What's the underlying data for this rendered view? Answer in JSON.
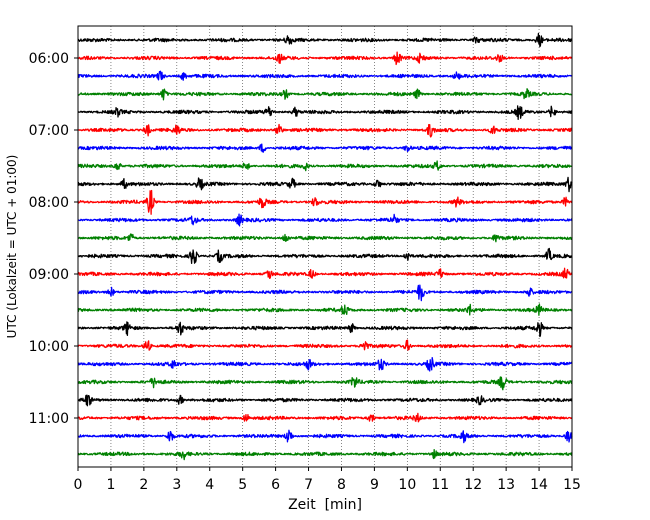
{
  "chart_data": {
    "type": "line",
    "title": "",
    "xlabel": "Zeit  [min]",
    "ylabel": "UTC (Lokalzeit = UTC + 01:00)",
    "xlim": [
      0,
      15
    ],
    "x_ticks": [
      "0",
      "1",
      "2",
      "3",
      "4",
      "5",
      "6",
      "7",
      "8",
      "9",
      "10",
      "11",
      "12",
      "13",
      "14",
      "15"
    ],
    "y_tick_labels": [
      "06:00",
      "07:00",
      "08:00",
      "09:00",
      "10:00",
      "11:00"
    ],
    "grid": "vertical dotted",
    "trace_colors": [
      "#000000",
      "#ff0000",
      "#0000ff",
      "#008000"
    ],
    "traces": [
      {
        "start": "05:45",
        "bursts": [
          [
            6.4,
            0.35
          ],
          [
            14.0,
            0.45
          ],
          [
            12.1,
            0.2
          ]
        ]
      },
      {
        "start": "06:00",
        "bursts": [
          [
            6.1,
            0.3
          ],
          [
            9.7,
            0.5
          ],
          [
            10.4,
            0.3
          ],
          [
            12.8,
            0.25
          ]
        ]
      },
      {
        "start": "06:15",
        "bursts": [
          [
            2.5,
            0.35
          ],
          [
            3.2,
            0.25
          ],
          [
            11.5,
            0.25
          ]
        ]
      },
      {
        "start": "06:30",
        "bursts": [
          [
            2.6,
            0.4
          ],
          [
            6.3,
            0.3
          ],
          [
            10.3,
            0.3
          ],
          [
            13.6,
            0.3
          ]
        ]
      },
      {
        "start": "06:45",
        "bursts": [
          [
            1.2,
            0.25
          ],
          [
            5.8,
            0.35
          ],
          [
            6.6,
            0.3
          ],
          [
            13.4,
            0.45
          ],
          [
            14.4,
            0.4
          ]
        ]
      },
      {
        "start": "07:00",
        "bursts": [
          [
            2.1,
            0.4
          ],
          [
            3.0,
            0.3
          ],
          [
            6.1,
            0.45
          ],
          [
            10.7,
            0.45
          ],
          [
            12.6,
            0.25
          ]
        ]
      },
      {
        "start": "07:15",
        "bursts": [
          [
            5.6,
            0.3
          ],
          [
            10.0,
            0.25
          ]
        ]
      },
      {
        "start": "07:30",
        "bursts": [
          [
            1.2,
            0.3
          ],
          [
            5.1,
            0.3
          ],
          [
            6.9,
            0.25
          ],
          [
            10.9,
            0.3
          ]
        ]
      },
      {
        "start": "07:45",
        "bursts": [
          [
            1.4,
            0.3
          ],
          [
            3.7,
            0.4
          ],
          [
            6.5,
            0.35
          ],
          [
            9.1,
            0.3
          ],
          [
            14.9,
            0.5
          ]
        ]
      },
      {
        "start": "08:00",
        "bursts": [
          [
            2.2,
            0.9
          ],
          [
            5.6,
            0.4
          ],
          [
            7.2,
            0.3
          ],
          [
            11.5,
            0.3
          ],
          [
            14.8,
            0.3
          ]
        ]
      },
      {
        "start": "08:15",
        "bursts": [
          [
            3.5,
            0.3
          ],
          [
            4.9,
            0.35
          ],
          [
            9.6,
            0.3
          ]
        ]
      },
      {
        "start": "08:30",
        "bursts": [
          [
            1.6,
            0.3
          ],
          [
            6.3,
            0.3
          ],
          [
            12.7,
            0.25
          ]
        ]
      },
      {
        "start": "08:45",
        "bursts": [
          [
            3.5,
            0.75
          ],
          [
            4.3,
            0.4
          ],
          [
            10.0,
            0.35
          ],
          [
            14.3,
            0.45
          ]
        ]
      },
      {
        "start": "09:00",
        "bursts": [
          [
            5.8,
            0.35
          ],
          [
            7.1,
            0.3
          ],
          [
            11.0,
            0.3
          ],
          [
            14.8,
            0.35
          ]
        ]
      },
      {
        "start": "09:15",
        "bursts": [
          [
            1.0,
            0.3
          ],
          [
            10.4,
            0.6
          ],
          [
            13.7,
            0.3
          ]
        ]
      },
      {
        "start": "09:30",
        "bursts": [
          [
            8.1,
            0.35
          ],
          [
            11.9,
            0.3
          ],
          [
            14.0,
            0.3
          ]
        ]
      },
      {
        "start": "09:45",
        "bursts": [
          [
            1.5,
            0.4
          ],
          [
            3.1,
            0.45
          ],
          [
            8.3,
            0.3
          ],
          [
            14.0,
            0.55
          ]
        ]
      },
      {
        "start": "10:00",
        "bursts": [
          [
            2.1,
            0.45
          ],
          [
            8.7,
            0.4
          ],
          [
            10.0,
            0.35
          ]
        ]
      },
      {
        "start": "10:15",
        "bursts": [
          [
            2.9,
            0.25
          ],
          [
            7.0,
            0.3
          ],
          [
            9.2,
            0.4
          ],
          [
            10.7,
            0.5
          ]
        ]
      },
      {
        "start": "10:30",
        "bursts": [
          [
            2.3,
            0.3
          ],
          [
            8.4,
            0.4
          ],
          [
            12.9,
            0.5
          ]
        ]
      },
      {
        "start": "10:45",
        "bursts": [
          [
            0.3,
            0.4
          ],
          [
            3.1,
            0.3
          ],
          [
            12.2,
            0.25
          ]
        ]
      },
      {
        "start": "11:00",
        "bursts": [
          [
            5.1,
            0.3
          ],
          [
            8.9,
            0.3
          ],
          [
            10.3,
            0.25
          ]
        ]
      },
      {
        "start": "11:15",
        "bursts": [
          [
            2.8,
            0.45
          ],
          [
            6.4,
            0.55
          ],
          [
            11.7,
            0.35
          ],
          [
            14.9,
            0.4
          ]
        ]
      },
      {
        "start": "11:30",
        "bursts": [
          [
            3.2,
            0.3
          ],
          [
            10.8,
            0.25
          ]
        ]
      }
    ]
  }
}
